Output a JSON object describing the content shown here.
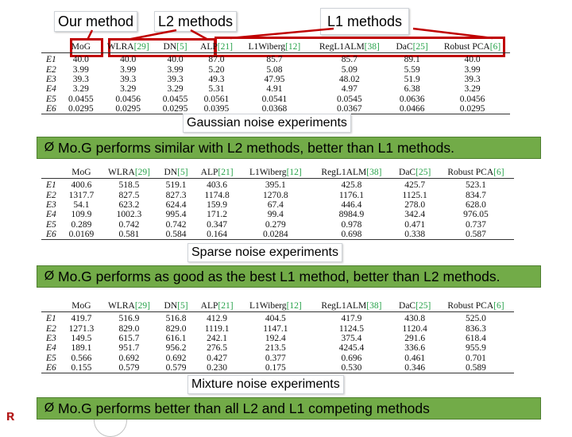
{
  "callouts": {
    "ours": "Our method",
    "l2": "L2 methods",
    "l1": "L1 methods"
  },
  "colors": {
    "banner": "#72ab48",
    "redbox": "#c00000",
    "ref_green": "#27a24a"
  },
  "tables": [
    {
      "caption": "Gaussian noise experiments",
      "headers": [
        {
          "name": "MoG",
          "ref": ""
        },
        {
          "name": "WLRA",
          "ref": "[29]"
        },
        {
          "name": "DN",
          "ref": "[5]"
        },
        {
          "name": "ALP",
          "ref": "[21]"
        },
        {
          "name": "L1Wiberg",
          "ref": "[12]"
        },
        {
          "name": "RegL1ALM",
          "ref": "[38]"
        },
        {
          "name": "DaC",
          "ref": "[25]"
        },
        {
          "name": "Robust PCA",
          "ref": "[6]"
        }
      ],
      "rows": [
        {
          "label": "E1",
          "cells": [
            "40.0",
            "40.0",
            "40.0",
            "87.0",
            "85.7",
            "85.7",
            "89.1",
            "40.0"
          ]
        },
        {
          "label": "E2",
          "cells": [
            "3.99",
            "3.99",
            "3.99",
            "5.20",
            "5.08",
            "5.09",
            "5.59",
            "3.99"
          ]
        },
        {
          "label": "E3",
          "cells": [
            "39.3",
            "39.3",
            "39.3",
            "49.3",
            "47.95",
            "48.02",
            "51.9",
            "39.3"
          ]
        },
        {
          "label": "E4",
          "cells": [
            "3.29",
            "3.29",
            "3.29",
            "5.31",
            "4.91",
            "4.97",
            "6.38",
            "3.29"
          ]
        },
        {
          "label": "E5",
          "cells": [
            "0.0455",
            "0.0456",
            "0.0455",
            "0.0561",
            "0.0541",
            "0.0545",
            "0.0636",
            "0.0456"
          ]
        },
        {
          "label": "E6",
          "cells": [
            "0.0295",
            "0.0295",
            "0.0295",
            "0.0395",
            "0.0368",
            "0.0367",
            "0.0466",
            "0.0295"
          ]
        }
      ]
    },
    {
      "caption": "Sparse noise experiments",
      "headers": [
        {
          "name": "MoG",
          "ref": ""
        },
        {
          "name": "WLRA",
          "ref": "[29]"
        },
        {
          "name": "DN",
          "ref": "[5]"
        },
        {
          "name": "ALP",
          "ref": "[21]"
        },
        {
          "name": "L1Wiberg",
          "ref": "[12]"
        },
        {
          "name": "RegL1ALM",
          "ref": "[38]"
        },
        {
          "name": "DaC",
          "ref": "[25]"
        },
        {
          "name": "Robust PCA",
          "ref": "[6]"
        }
      ],
      "rows": [
        {
          "label": "E1",
          "cells": [
            "400.6",
            "518.5",
            "519.1",
            "403.6",
            "395.1",
            "425.8",
            "425.7",
            "523.1"
          ]
        },
        {
          "label": "E2",
          "cells": [
            "1317.7",
            "827.5",
            "827.3",
            "1174.8",
            "1270.8",
            "1176.1",
            "1125.1",
            "834.7"
          ]
        },
        {
          "label": "E3",
          "cells": [
            "54.1",
            "623.2",
            "624.4",
            "159.9",
            "67.4",
            "446.4",
            "278.0",
            "628.0"
          ]
        },
        {
          "label": "E4",
          "cells": [
            "109.9",
            "1002.3",
            "995.4",
            "171.2",
            "99.4",
            "8984.9",
            "342.4",
            "976.05"
          ]
        },
        {
          "label": "E5",
          "cells": [
            "0.289",
            "0.742",
            "0.742",
            "0.347",
            "0.279",
            "0.978",
            "0.471",
            "0.737"
          ]
        },
        {
          "label": "E6",
          "cells": [
            "0.0169",
            "0.581",
            "0.584",
            "0.164",
            "0.0284",
            "0.698",
            "0.338",
            "0.587"
          ]
        }
      ]
    },
    {
      "caption": "Mixture noise experiments",
      "headers": [
        {
          "name": "MoG",
          "ref": ""
        },
        {
          "name": "WLRA",
          "ref": "[29]"
        },
        {
          "name": "DN",
          "ref": "[5]"
        },
        {
          "name": "ALP",
          "ref": "[21]"
        },
        {
          "name": "L1Wiberg",
          "ref": "[12]"
        },
        {
          "name": "RegL1ALM",
          "ref": "[38]"
        },
        {
          "name": "DaC",
          "ref": "[25]"
        },
        {
          "name": "Robust PCA",
          "ref": "[6]"
        }
      ],
      "rows": [
        {
          "label": "E1",
          "cells": [
            "419.7",
            "516.9",
            "516.8",
            "412.9",
            "404.5",
            "417.9",
            "430.8",
            "525.0"
          ]
        },
        {
          "label": "E2",
          "cells": [
            "1271.3",
            "829.0",
            "829.0",
            "1119.1",
            "1147.1",
            "1124.5",
            "1120.4",
            "836.3"
          ]
        },
        {
          "label": "E3",
          "cells": [
            "149.5",
            "615.7",
            "616.1",
            "242.1",
            "192.4",
            "375.4",
            "291.6",
            "618.4"
          ]
        },
        {
          "label": "E4",
          "cells": [
            "189.1",
            "951.7",
            "956.2",
            "276.5",
            "213.5",
            "4245.4",
            "336.6",
            "955.9"
          ]
        },
        {
          "label": "E5",
          "cells": [
            "0.566",
            "0.692",
            "0.692",
            "0.427",
            "0.377",
            "0.696",
            "0.461",
            "0.701"
          ]
        },
        {
          "label": "E6",
          "cells": [
            "0.155",
            "0.579",
            "0.579",
            "0.230",
            "0.175",
            "0.530",
            "0.346",
            "0.589"
          ]
        }
      ]
    }
  ],
  "banners": [
    "Mo.G performs similar with L2 methods, better than L1 methods.",
    "Mo.G performs as good as the best L1 method, better than L2 methods.",
    "Mo.G performs better than all L2 and L1 competing methods"
  ],
  "bullet_glyph": "Ø"
}
